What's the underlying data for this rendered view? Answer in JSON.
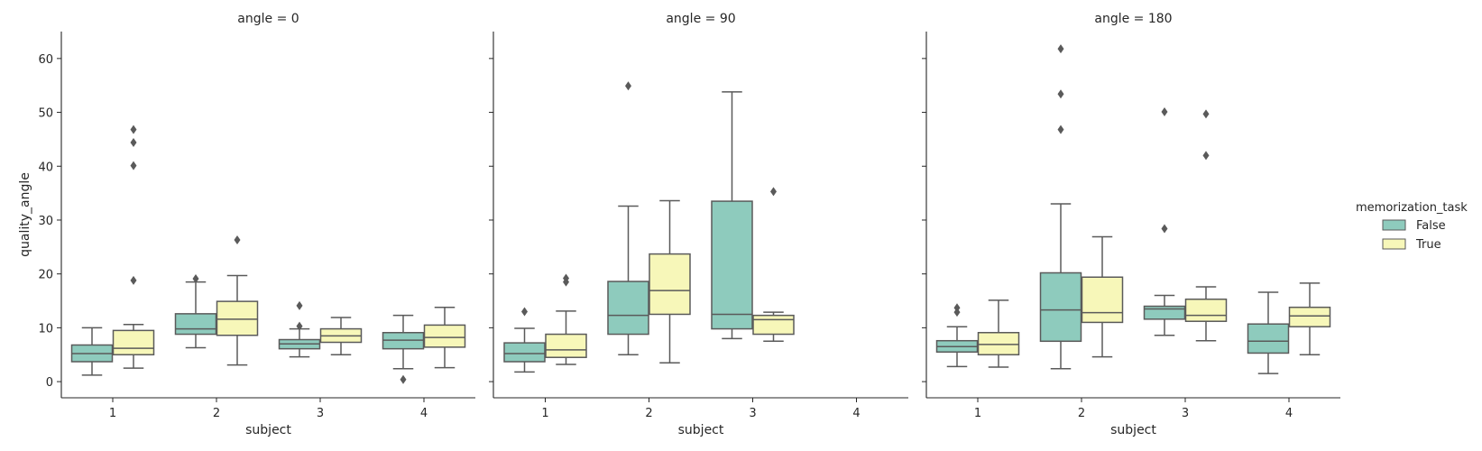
{
  "chart_data": {
    "type": "box",
    "ylabel": "quality_angle",
    "xlabel": "subject",
    "categories": [
      "1",
      "2",
      "3",
      "4"
    ],
    "ylim": [
      -3,
      65
    ],
    "yticks": [
      0,
      10,
      20,
      30,
      40,
      50,
      60
    ],
    "grid": false,
    "hue_title": "memorization_task",
    "series_names": [
      "False",
      "True"
    ],
    "colors": {
      "False": "#8ecbbd",
      "True": "#f7f7b9",
      "line": "#5a5a5a"
    },
    "legend_position": "right",
    "panels": [
      {
        "title": "angle = 0",
        "boxes": [
          {
            "subject": "1",
            "hue": "False",
            "whislo": 1.2,
            "q1": 3.7,
            "med": 5.2,
            "q3": 6.8,
            "whishi": 10.0,
            "fliers": []
          },
          {
            "subject": "1",
            "hue": "True",
            "whislo": 2.5,
            "q1": 5.0,
            "med": 6.2,
            "q3": 9.5,
            "whishi": 10.6,
            "fliers": [
              18.8,
              40.1,
              44.4,
              46.8
            ]
          },
          {
            "subject": "2",
            "hue": "False",
            "whislo": 6.3,
            "q1": 8.8,
            "med": 9.8,
            "q3": 12.6,
            "whishi": 18.5,
            "fliers": [
              19.1
            ]
          },
          {
            "subject": "2",
            "hue": "True",
            "whislo": 3.1,
            "q1": 8.6,
            "med": 11.6,
            "q3": 14.9,
            "whishi": 19.7,
            "fliers": [
              26.3
            ]
          },
          {
            "subject": "3",
            "hue": "False",
            "whislo": 4.6,
            "q1": 6.1,
            "med": 7.0,
            "q3": 7.8,
            "whishi": 9.8,
            "fliers": [
              10.3,
              14.1
            ]
          },
          {
            "subject": "3",
            "hue": "True",
            "whislo": 5.0,
            "q1": 7.3,
            "med": 8.5,
            "q3": 9.8,
            "whishi": 11.9,
            "fliers": []
          },
          {
            "subject": "4",
            "hue": "False",
            "whislo": 2.4,
            "q1": 6.1,
            "med": 7.7,
            "q3": 9.1,
            "whishi": 12.3,
            "fliers": [
              0.4
            ]
          },
          {
            "subject": "4",
            "hue": "True",
            "whislo": 2.6,
            "q1": 6.4,
            "med": 8.2,
            "q3": 10.5,
            "whishi": 13.8,
            "fliers": []
          }
        ]
      },
      {
        "title": "angle = 90",
        "boxes": [
          {
            "subject": "1",
            "hue": "False",
            "whislo": 1.8,
            "q1": 3.7,
            "med": 5.2,
            "q3": 7.2,
            "whishi": 9.9,
            "fliers": [
              13.0
            ]
          },
          {
            "subject": "1",
            "hue": "True",
            "whislo": 3.2,
            "q1": 4.5,
            "med": 5.9,
            "q3": 8.8,
            "whishi": 13.1,
            "fliers": [
              18.5,
              19.2
            ]
          },
          {
            "subject": "2",
            "hue": "False",
            "whislo": 5.0,
            "q1": 8.8,
            "med": 12.3,
            "q3": 18.6,
            "whishi": 32.6,
            "fliers": [
              54.9
            ]
          },
          {
            "subject": "2",
            "hue": "True",
            "whislo": 3.5,
            "q1": 12.5,
            "med": 16.9,
            "q3": 23.7,
            "whishi": 33.6,
            "fliers": []
          },
          {
            "subject": "3",
            "hue": "False",
            "whislo": 8.0,
            "q1": 9.8,
            "med": 12.5,
            "q3": 33.5,
            "whishi": 53.8,
            "fliers": []
          },
          {
            "subject": "3",
            "hue": "True",
            "whislo": 7.5,
            "q1": 8.8,
            "med": 11.5,
            "q3": 12.3,
            "whishi": 12.9,
            "fliers": [
              35.3
            ]
          }
        ]
      },
      {
        "title": "angle = 180",
        "boxes": [
          {
            "subject": "1",
            "hue": "False",
            "whislo": 2.8,
            "q1": 5.5,
            "med": 6.5,
            "q3": 7.6,
            "whishi": 10.2,
            "fliers": [
              12.9,
              13.7
            ]
          },
          {
            "subject": "1",
            "hue": "True",
            "whislo": 2.7,
            "q1": 5.0,
            "med": 6.9,
            "q3": 9.1,
            "whishi": 15.1,
            "fliers": []
          },
          {
            "subject": "2",
            "hue": "False",
            "whislo": 2.4,
            "q1": 7.5,
            "med": 13.3,
            "q3": 20.2,
            "whishi": 33.0,
            "fliers": [
              46.8,
              53.4,
              61.8
            ]
          },
          {
            "subject": "2",
            "hue": "True",
            "whislo": 4.6,
            "q1": 11.0,
            "med": 12.8,
            "q3": 19.4,
            "whishi": 26.9,
            "fliers": []
          },
          {
            "subject": "3",
            "hue": "False",
            "whislo": 8.6,
            "q1": 11.6,
            "med": 13.5,
            "q3": 14.0,
            "whishi": 16.0,
            "fliers": [
              28.4,
              50.1
            ]
          },
          {
            "subject": "3",
            "hue": "True",
            "whislo": 7.6,
            "q1": 11.2,
            "med": 12.3,
            "q3": 15.3,
            "whishi": 17.6,
            "fliers": [
              42.0,
              49.7
            ]
          },
          {
            "subject": "4",
            "hue": "False",
            "whislo": 1.5,
            "q1": 5.3,
            "med": 7.5,
            "q3": 10.7,
            "whishi": 16.6,
            "fliers": []
          },
          {
            "subject": "4",
            "hue": "True",
            "whislo": 5.0,
            "q1": 10.2,
            "med": 12.2,
            "q3": 13.8,
            "whishi": 18.3,
            "fliers": []
          }
        ]
      }
    ]
  }
}
